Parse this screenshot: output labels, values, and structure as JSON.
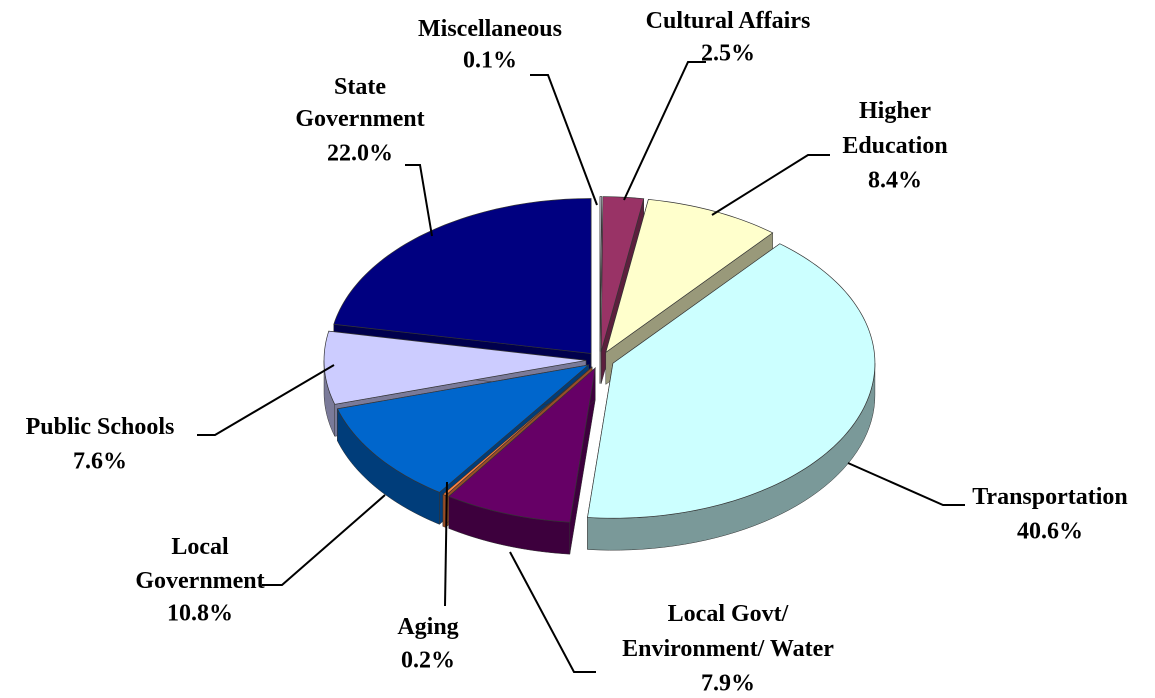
{
  "chart_data": {
    "type": "pie3d",
    "categories": [
      "Miscellaneous",
      "Cultural Affairs",
      "Higher Education",
      "Transportation",
      "Local Govt/ Environment/ Water",
      "Aging",
      "Local Government",
      "Public Schools",
      "State Government"
    ],
    "values": [
      0.1,
      2.5,
      8.4,
      40.6,
      7.9,
      0.2,
      10.8,
      7.6,
      22.0
    ],
    "value_labels": [
      "0.1%",
      "2.5%",
      "8.4%",
      "40.6%",
      "7.9%",
      "0.2%",
      "10.8%",
      "7.6%",
      "22.0%"
    ],
    "colors": [
      "#e8e8f8",
      "#993366",
      "#ffffcc",
      "#ccffff",
      "#660066",
      "#ff8040",
      "#0066cc",
      "#ccccff",
      "#000080"
    ]
  }
}
